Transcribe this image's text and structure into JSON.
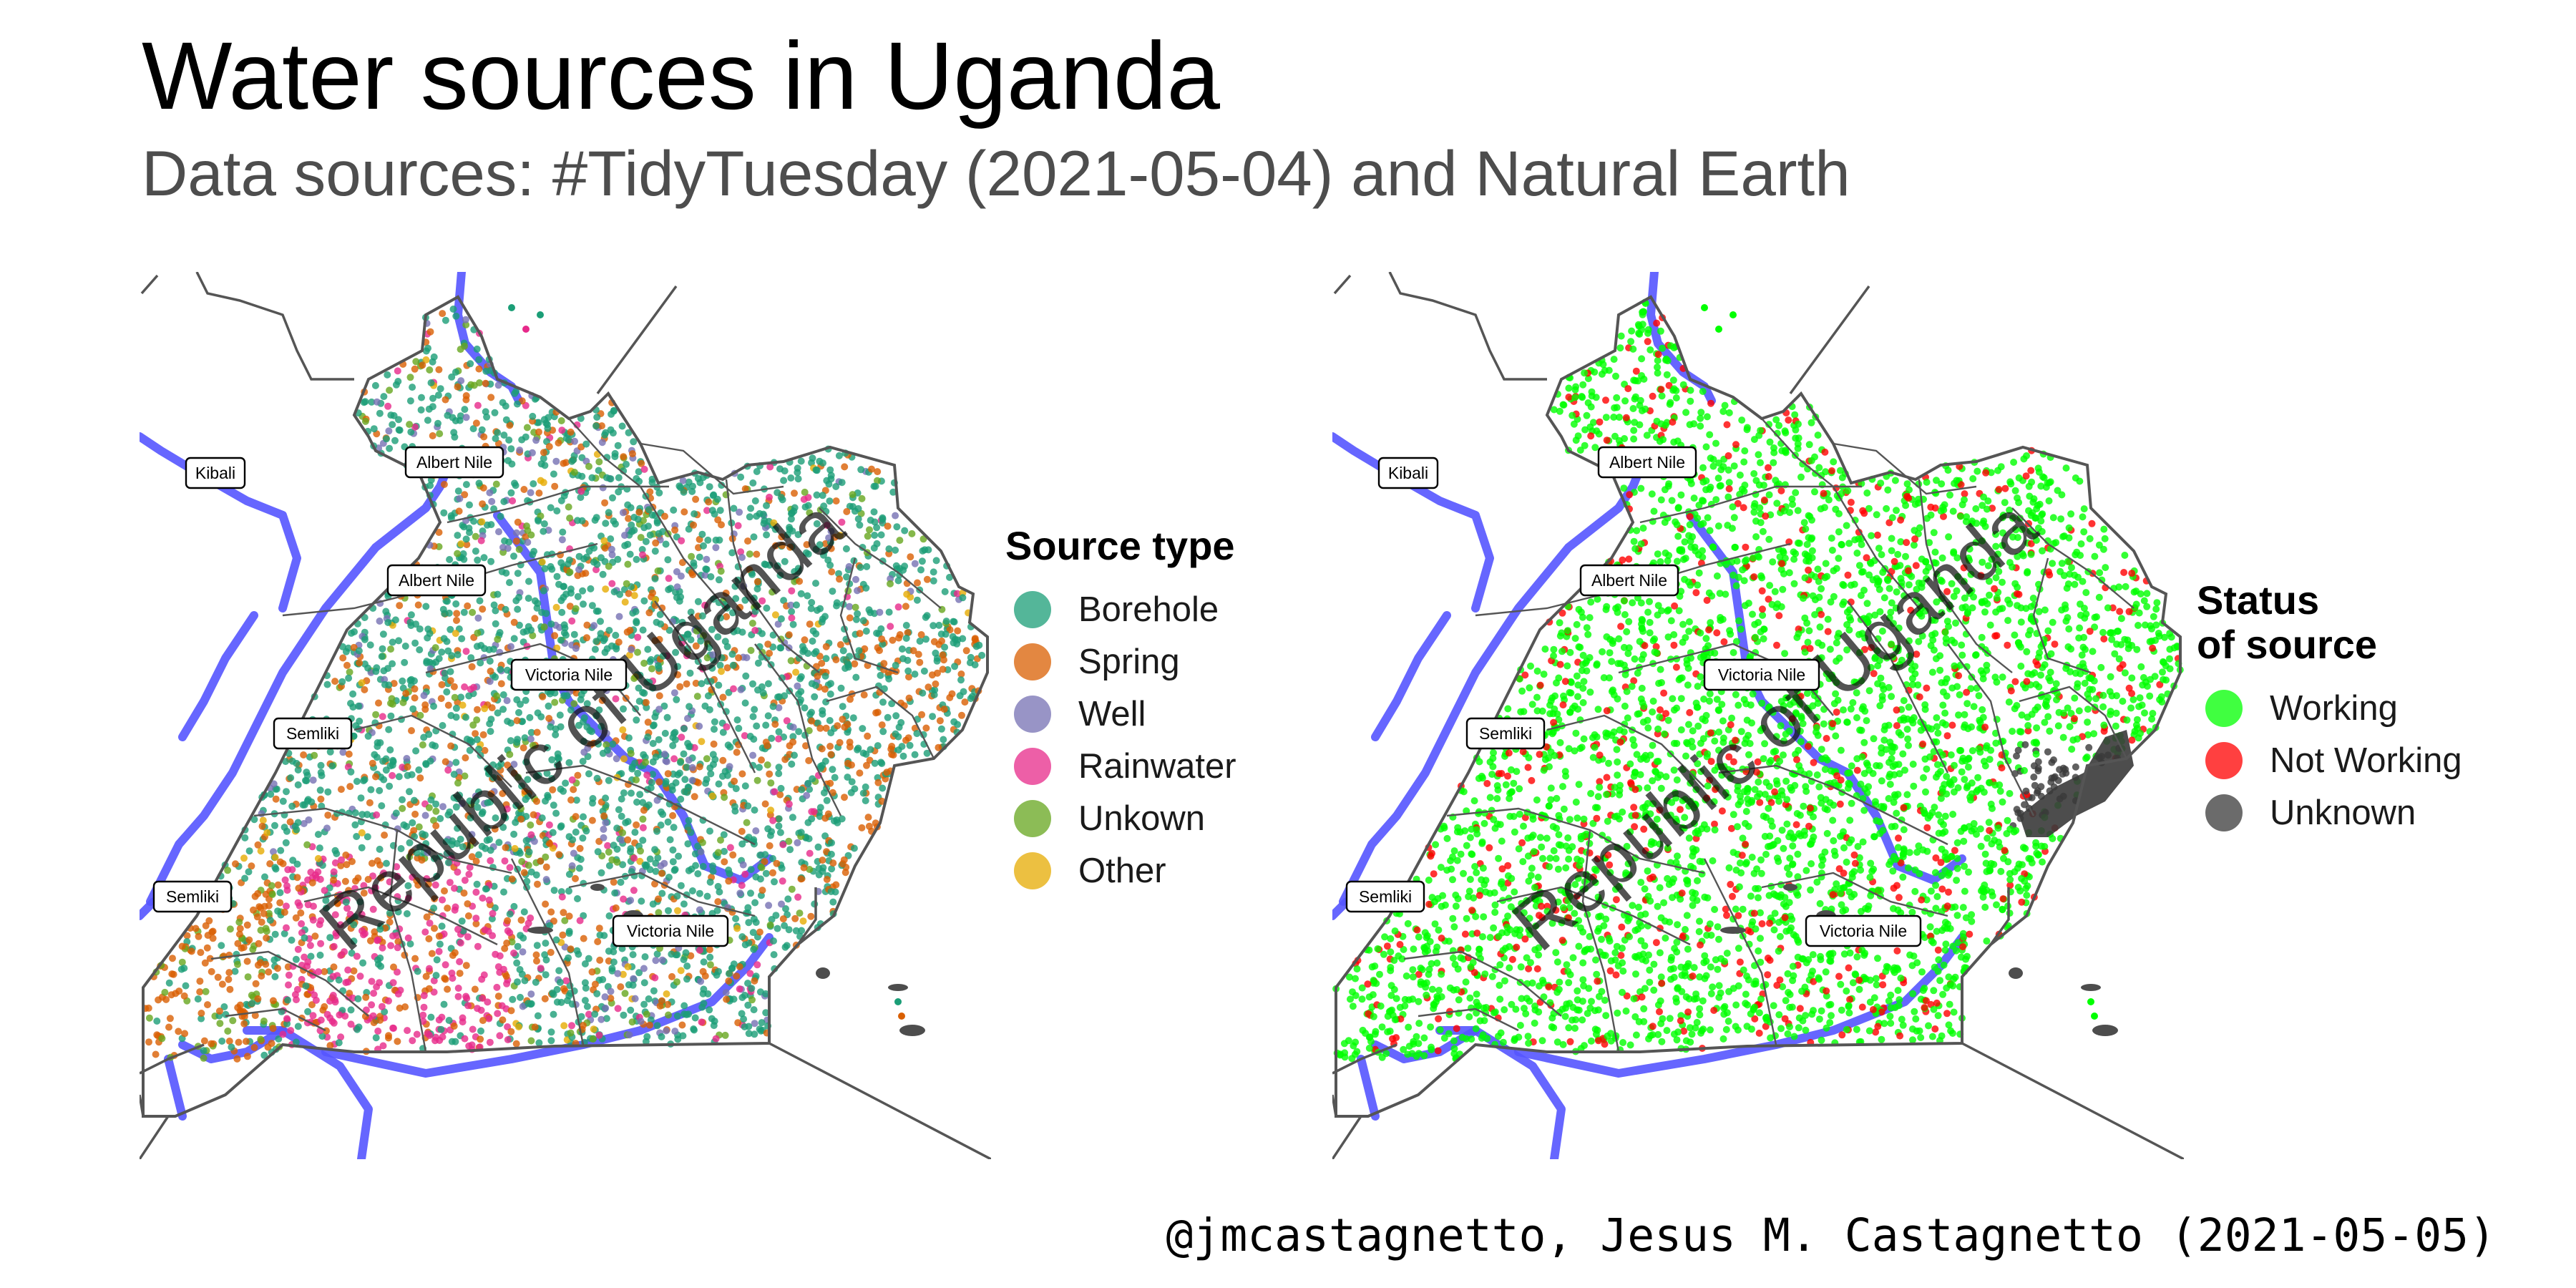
{
  "title": "Water sources in Uganda",
  "subtitle": "Data sources: #TidyTuesday (2021-05-04) and Natural Earth",
  "caption": "@jmcastagnetto, Jesus M. Castagnetto (2021-05-05)",
  "country_label": "Republic of Uganda",
  "river_labels": [
    "Kibali",
    "Albert Nile",
    "Albert Nile",
    "Victoria Nile",
    "Semliki",
    "Semliki",
    "Victoria Nile"
  ],
  "legend_left": {
    "title": "Source type",
    "items": [
      {
        "label": "Borehole",
        "color": "#1b9e77"
      },
      {
        "label": "Spring",
        "color": "#d95f02"
      },
      {
        "label": "Well",
        "color": "#7570b3"
      },
      {
        "label": "Rainwater",
        "color": "#e7298a"
      },
      {
        "label": "Unkown",
        "color": "#66a61e"
      },
      {
        "label": "Other",
        "color": "#e6ab02"
      }
    ]
  },
  "legend_right": {
    "title": "Status\nof source",
    "items": [
      {
        "label": "Working",
        "color": "#00ff00"
      },
      {
        "label": "Not Working",
        "color": "#ff0000"
      },
      {
        "label": "Unknown",
        "color": "#3a3a3a"
      }
    ]
  },
  "colors": {
    "river": "#5555ff",
    "boundary": "#555555",
    "lake": "#4d4d4d"
  }
}
